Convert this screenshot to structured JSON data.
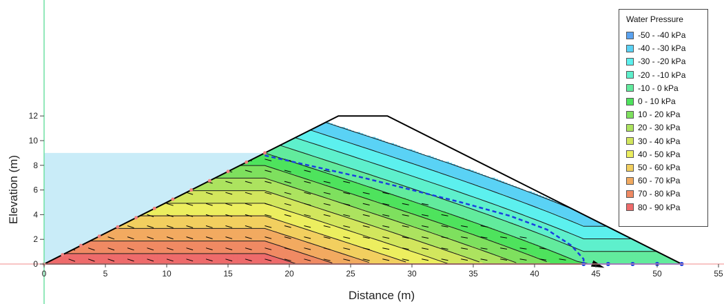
{
  "chart_data": {
    "type": "area",
    "xlabel": "Distance (m)",
    "ylabel": "Elevation (m)",
    "xlim": [
      0,
      55
    ],
    "ylim": [
      0,
      12
    ],
    "xticks": [
      "0",
      "5",
      "10",
      "15",
      "20",
      "25",
      "30",
      "35",
      "40",
      "45",
      "50",
      "55"
    ],
    "yticks": [
      "0",
      "2",
      "4",
      "6",
      "8",
      "10",
      "12"
    ],
    "dam_outline": [
      [
        0,
        0
      ],
      [
        18,
        9
      ],
      [
        24,
        12
      ],
      [
        28,
        12
      ],
      [
        52,
        0
      ]
    ],
    "reservoir_level": 9,
    "phreatic_line": [
      [
        18,
        8.8
      ],
      [
        22,
        7.9
      ],
      [
        26,
        7.0
      ],
      [
        30,
        6.0
      ],
      [
        34,
        5.0
      ],
      [
        38,
        3.9
      ],
      [
        41,
        2.8
      ],
      [
        43,
        1.5
      ],
      [
        44,
        0.4
      ],
      [
        44,
        0
      ]
    ],
    "drain_points_x": [
      44,
      46,
      48,
      50,
      52
    ],
    "legend": {
      "title": "Water Pressure",
      "entries": [
        {
          "label": "-50 - -40 kPa",
          "color": "#5aa2f0"
        },
        {
          "label": "-40 - -30 kPa",
          "color": "#5ad2f5"
        },
        {
          "label": "-30 - -20 kPa",
          "color": "#5cf0ee"
        },
        {
          "label": "-20 - -10 kPa",
          "color": "#5ef0cc"
        },
        {
          "label": "-10 - 0 kPa",
          "color": "#62eb9d"
        },
        {
          "label": "0 - 10 kPa",
          "color": "#4ee35d"
        },
        {
          "label": "10 - 20 kPa",
          "color": "#7ee05e"
        },
        {
          "label": "20 - 30 kPa",
          "color": "#ace35f"
        },
        {
          "label": "30 - 40 kPa",
          "color": "#d2e65d"
        },
        {
          "label": "40 - 50 kPa",
          "color": "#ecee5f"
        },
        {
          "label": "50 - 60 kPa",
          "color": "#f2cf5f"
        },
        {
          "label": "60 - 70 kPa",
          "color": "#f2aa60"
        },
        {
          "label": "70 - 80 kPa",
          "color": "#f08a63"
        },
        {
          "label": "80 - 90 kPa",
          "color": "#ee6b6b"
        }
      ]
    },
    "colors": {
      "reservoir": "#c9ecf8",
      "axis_reference": "#6fe0a4",
      "phreatic": "#1a3ee0",
      "upstream_nodes": "#f08080",
      "outline": "#000000"
    }
  }
}
